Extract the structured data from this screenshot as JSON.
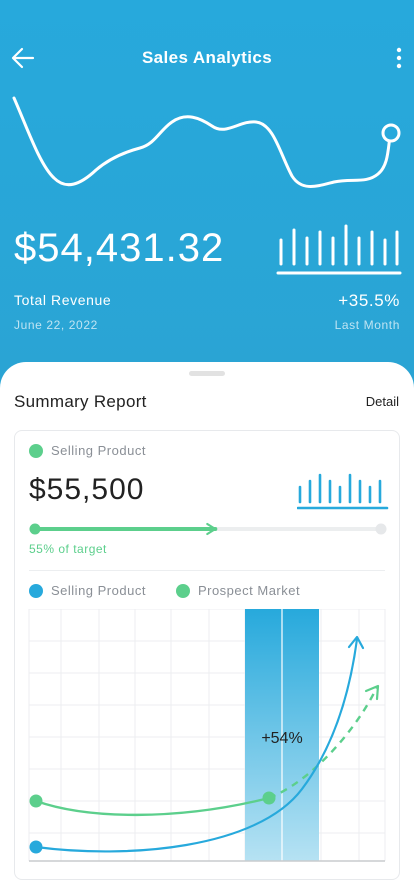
{
  "header": {
    "title": "Sales Analytics",
    "back_icon": "arrow-left-icon",
    "more_icon": "more-vertical-icon"
  },
  "revenue": {
    "amount": "$54,431.32",
    "label": "Total Revenue",
    "date": "June 22, 2022",
    "change": "+35.5%",
    "period": "Last Month"
  },
  "summary": {
    "title": "Summary Report",
    "detail_link": "Detail"
  },
  "selling": {
    "label": "Selling Product",
    "amount": "$55,500",
    "progress": 0.55,
    "target_text": "55% of target"
  },
  "legend": {
    "selling": "Selling Product",
    "prospect": "Prospect Market"
  },
  "chart_data": {
    "type": "line",
    "series": [
      {
        "name": "Selling Product"
      },
      {
        "name": "Prospect Market"
      }
    ],
    "highlight_label": "+54%",
    "grid": true
  },
  "colors": {
    "primary": "#27a9dc",
    "green": "#5ccf8c",
    "text": "#222222"
  }
}
